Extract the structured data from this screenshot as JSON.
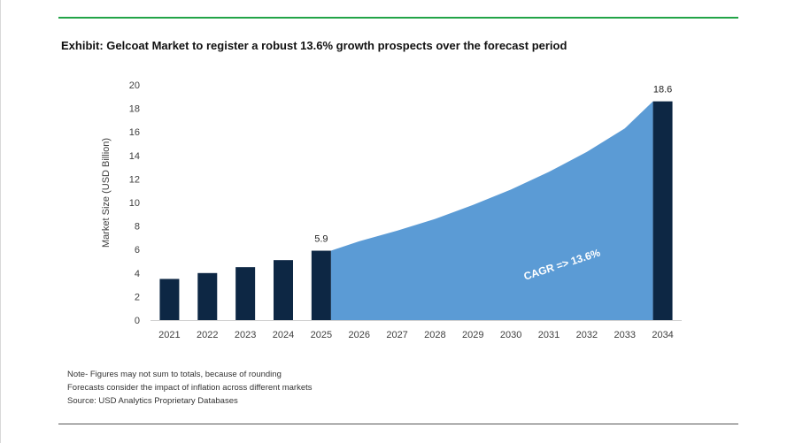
{
  "title": "Exhibit: Gelcoat Market to register a robust 13.6% growth prospects over the forecast period",
  "colors": {
    "accent_rule": "#22a447",
    "bar": "#0d2744",
    "area": "#5b9bd5",
    "cagr_text": "#ffffff"
  },
  "chart_data": {
    "type": "bar",
    "title": "Exhibit: Gelcoat Market to register a robust 13.6% growth prospects over the forecast period",
    "xlabel": "",
    "ylabel": "Market Size (USD Billion)",
    "ylim": [
      0,
      20
    ],
    "yticks": [
      "0",
      "2",
      "4",
      "6",
      "8",
      "10",
      "12",
      "14",
      "16",
      "18",
      "20"
    ],
    "categories": [
      "2021",
      "2022",
      "2023",
      "2024",
      "2025",
      "2026",
      "2027",
      "2028",
      "2029",
      "2030",
      "2031",
      "2032",
      "2033",
      "2034"
    ],
    "bars": [
      {
        "category": "2021",
        "value": 3.5
      },
      {
        "category": "2022",
        "value": 4.0
      },
      {
        "category": "2023",
        "value": 4.5
      },
      {
        "category": "2024",
        "value": 5.1
      },
      {
        "category": "2025",
        "value": 5.9,
        "label": "5.9"
      },
      {
        "category": "2034",
        "value": 18.6,
        "label": "18.6"
      }
    ],
    "forecast_area": {
      "categories": [
        "2025",
        "2026",
        "2027",
        "2028",
        "2029",
        "2030",
        "2031",
        "2032",
        "2033",
        "2034"
      ],
      "values": [
        5.9,
        6.7,
        7.6,
        8.6,
        9.8,
        11.1,
        12.6,
        14.3,
        16.3,
        18.6
      ]
    },
    "annotation": "CAGR =>  13.6%",
    "grid": false
  },
  "notes": [
    "Note- Figures may not sum to totals, because of rounding",
    "Forecasts consider the impact of inflation across different markets",
    "Source: USD Analytics Proprietary Databases"
  ]
}
